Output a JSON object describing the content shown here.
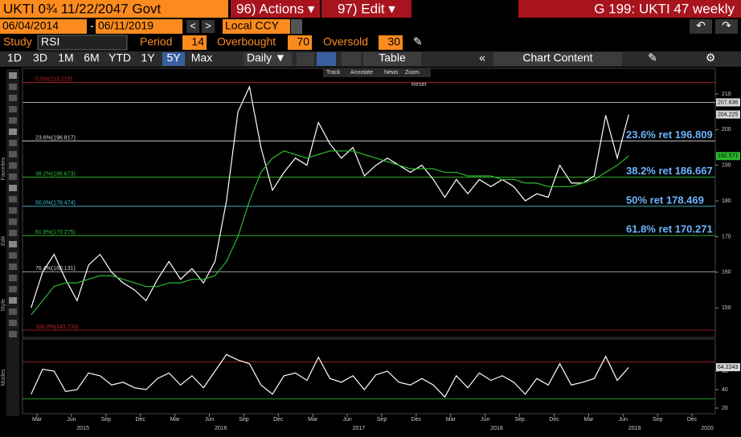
{
  "header": {
    "security": "UKTI 0¾  11/22/2047 Govt",
    "actions": "96) Actions ▾",
    "edit": "97) Edit ▾",
    "page": "G 199: UKTI 47 weekly"
  },
  "controls": {
    "start_date": "06/04/2014",
    "end_date": "06/11/2019",
    "currency": "Local CCY",
    "study_label": "Study",
    "study": "RSI",
    "period_label": "Period",
    "period": 14,
    "overbought_label": "Overbought",
    "overbought": 70,
    "oversold_label": "Oversold",
    "oversold": 30
  },
  "toolbar": {
    "ranges": [
      "1D",
      "3D",
      "1M",
      "6M",
      "YTD",
      "1Y",
      "5Y",
      "Max"
    ],
    "active_range": 6,
    "frequency": "Daily ▼",
    "table": "Table",
    "chart_content": "Chart Content"
  },
  "chart_tools": [
    "Track",
    "Annotate",
    "News",
    "Zoom",
    "Reset"
  ],
  "side_labels": [
    "Favorites",
    "Edit",
    "Style",
    "Modes"
  ],
  "chart_data": [
    {
      "type": "line",
      "x": [
        "2015-02",
        "2015-03",
        "2015-04",
        "2015-05",
        "2015-06",
        "2015-07",
        "2015-08",
        "2015-09",
        "2015-10",
        "2015-11",
        "2015-12",
        "2016-01",
        "2016-02",
        "2016-03",
        "2016-04",
        "2016-05",
        "2016-06",
        "2016-07",
        "2016-08",
        "2016-09",
        "2016-10",
        "2016-11",
        "2016-12",
        "2017-01",
        "2017-02",
        "2017-03",
        "2017-04",
        "2017-05",
        "2017-06",
        "2017-07",
        "2017-08",
        "2017-09",
        "2017-10",
        "2017-11",
        "2017-12",
        "2018-01",
        "2018-02",
        "2018-03",
        "2018-04",
        "2018-05",
        "2018-06",
        "2018-07",
        "2018-08",
        "2018-09",
        "2018-10",
        "2018-11",
        "2018-12",
        "2019-01",
        "2019-02",
        "2019-03",
        "2019-04",
        "2019-05",
        "2019-06"
      ],
      "series": [
        {
          "color": "#ffffff",
          "values": [
            150,
            160,
            165,
            158,
            152,
            162,
            165,
            160,
            157,
            155,
            152,
            158,
            163,
            158,
            161,
            157,
            163,
            180,
            205,
            212,
            195,
            183,
            188,
            192,
            190,
            202,
            196,
            192,
            195,
            187,
            190,
            192,
            190,
            188,
            190,
            186,
            181,
            186,
            182,
            186,
            184,
            186,
            184,
            180,
            182,
            181,
            190,
            185,
            185,
            187,
            204,
            192,
            204.2
          ]
        },
        {
          "color": "#2db82d",
          "values": [
            148,
            152,
            156,
            157,
            157,
            158,
            159,
            159,
            158,
            157,
            156,
            156,
            157,
            157,
            158,
            158,
            159,
            163,
            170,
            180,
            188,
            192,
            194,
            193,
            192,
            193,
            194,
            194,
            194,
            193,
            192,
            191,
            190,
            189,
            189,
            189,
            188,
            188,
            187,
            187,
            187,
            186,
            186,
            185,
            185,
            184,
            184,
            184,
            185,
            186,
            188,
            190,
            192.6
          ]
        }
      ],
      "ylim": [
        141.7,
        217.2
      ],
      "yticks": [
        150,
        160,
        170,
        180,
        190,
        200,
        210
      ],
      "xticks": [
        {
          "value": "2015-03",
          "label": "Mar"
        },
        {
          "value": "2015-06",
          "label": "Jun"
        },
        {
          "value": "2015-09",
          "label": "Sep"
        },
        {
          "value": "2015-12",
          "label": "Dec"
        },
        {
          "value": "2016-03",
          "label": "Mar"
        },
        {
          "value": "2016-06",
          "label": "Jun"
        },
        {
          "value": "2016-09",
          "label": "Sep"
        },
        {
          "value": "2016-12",
          "label": "Dec"
        },
        {
          "value": "2017-03",
          "label": "Mar"
        },
        {
          "value": "2017-06",
          "label": "Jun"
        },
        {
          "value": "2017-09",
          "label": "Sep"
        },
        {
          "value": "2017-12",
          "label": "Dec"
        },
        {
          "value": "2018-03",
          "label": "Mar"
        },
        {
          "value": "2018-06",
          "label": "Jun"
        },
        {
          "value": "2018-09",
          "label": "Sep"
        },
        {
          "value": "2018-12",
          "label": "Dec"
        },
        {
          "value": "2019-03",
          "label": "Mar"
        },
        {
          "value": "2019-06",
          "label": "Jun"
        },
        {
          "value": "2019-09",
          "label": "Sep"
        },
        {
          "value": "2019-12",
          "label": "Dec"
        }
      ],
      "years": [
        "2015",
        "2016",
        "2017",
        "2018",
        "2019",
        "2020"
      ],
      "fib_levels": [
        {
          "label": "0.0%(213.215)",
          "value": 213.215,
          "color": "#c0262d"
        },
        {
          "label": "23.6%(196.817)",
          "value": 196.817,
          "color": "#d8d8d8"
        },
        {
          "label": "38.2%(186.673)",
          "value": 186.673,
          "color": "#34c234"
        },
        {
          "label": "50.0%(178.474)",
          "value": 178.474,
          "color": "#3fc4d8"
        },
        {
          "label": "61.8%(170.275)",
          "value": 170.275,
          "color": "#34c234"
        },
        {
          "label": "76.4%(160.131)",
          "value": 160.131,
          "color": "#d8d8d8"
        },
        {
          "label": "100.0%(143.733)",
          "value": 143.733,
          "color": "#c0262d"
        }
      ],
      "annotations": [
        {
          "text": "23.6% ret 196.809",
          "value": 196.809
        },
        {
          "text": "38.2% ret 186.667",
          "value": 186.667
        },
        {
          "text": "50% ret 178.469",
          "value": 178.469
        },
        {
          "text": "61.8% ret 170.271",
          "value": 170.271
        }
      ],
      "last_values": [
        {
          "value": 207.636,
          "label": "207.636",
          "color": "#ffffff"
        },
        {
          "value": 204.225,
          "label": "204.225",
          "color": "#ffffff"
        },
        {
          "value": 192.571,
          "label": "192.571",
          "color": "#2db82d"
        }
      ]
    },
    {
      "type": "line",
      "series": [
        {
          "color": "#ffffff",
          "values": [
            35,
            62,
            60,
            38,
            40,
            58,
            55,
            45,
            48,
            42,
            40,
            52,
            58,
            45,
            55,
            42,
            60,
            78,
            72,
            68,
            45,
            35,
            55,
            58,
            50,
            75,
            52,
            48,
            55,
            40,
            56,
            60,
            48,
            45,
            52,
            45,
            32,
            55,
            42,
            58,
            50,
            55,
            48,
            35,
            52,
            45,
            68,
            45,
            48,
            52,
            76,
            50,
            64
          ]
        }
      ],
      "ylim": [
        13.9,
        94.8
      ],
      "yticks": [
        20,
        40,
        60
      ],
      "last_values": [
        {
          "value": 64.2243,
          "label": "64.2243",
          "color": "#ffffff"
        }
      ]
    }
  ]
}
